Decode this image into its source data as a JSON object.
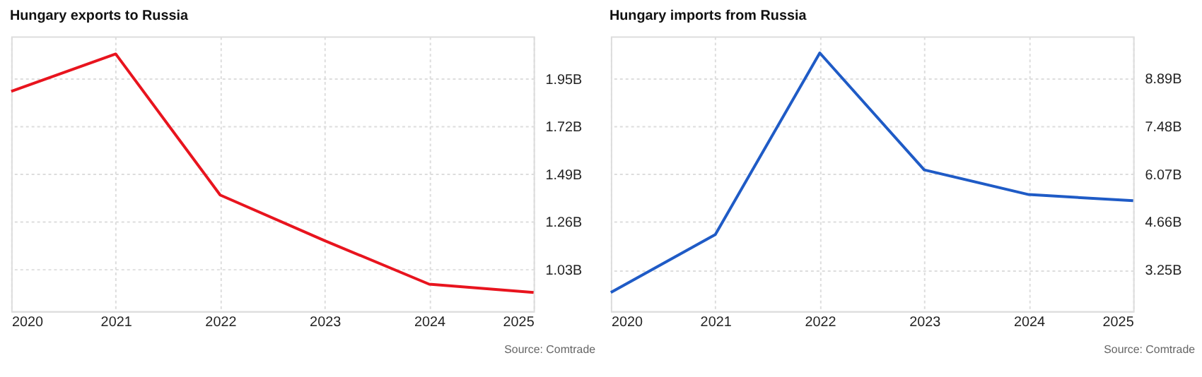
{
  "chart_data": [
    {
      "type": "line",
      "title": "Hungary exports to Russia",
      "x": [
        2020,
        2021,
        2022,
        2023,
        2024,
        2025
      ],
      "xlim": [
        2020,
        2025
      ],
      "xticks": [
        2020,
        2021,
        2022,
        2023,
        2024,
        2025
      ],
      "ylim": [
        0.83,
        2.155
      ],
      "yticks": [
        {
          "value": 1.03,
          "label": "1.03B"
        },
        {
          "value": 1.26,
          "label": "1.26B"
        },
        {
          "value": 1.49,
          "label": "1.49B"
        },
        {
          "value": 1.72,
          "label": "1.72B"
        },
        {
          "value": 1.95,
          "label": "1.95B"
        }
      ],
      "series": [
        {
          "color": "#e8141e",
          "values": [
            1.89,
            2.07,
            1.39,
            1.17,
            0.96,
            0.92
          ]
        }
      ],
      "grid": true,
      "marker": "none",
      "annotations": [
        "Source: Comtrade"
      ]
    },
    {
      "type": "line",
      "title": "Hungary imports from Russia",
      "x": [
        2020,
        2021,
        2022,
        2023,
        2024,
        2025
      ],
      "xlim": [
        2020,
        2025
      ],
      "xticks": [
        2020,
        2021,
        2022,
        2023,
        2024,
        2025
      ],
      "ylim": [
        2.03,
        10.14
      ],
      "yticks": [
        {
          "value": 3.25,
          "label": "3.25B"
        },
        {
          "value": 4.66,
          "label": "4.66B"
        },
        {
          "value": 6.07,
          "label": "6.07B"
        },
        {
          "value": 7.48,
          "label": "7.48B"
        },
        {
          "value": 8.89,
          "label": "8.89B"
        }
      ],
      "series": [
        {
          "color": "#1f5bc6",
          "values": [
            2.58,
            4.29,
            9.65,
            6.2,
            5.47,
            5.29
          ]
        }
      ],
      "grid": true,
      "marker": "none",
      "annotations": [
        "Source: Comtrade"
      ]
    }
  ]
}
